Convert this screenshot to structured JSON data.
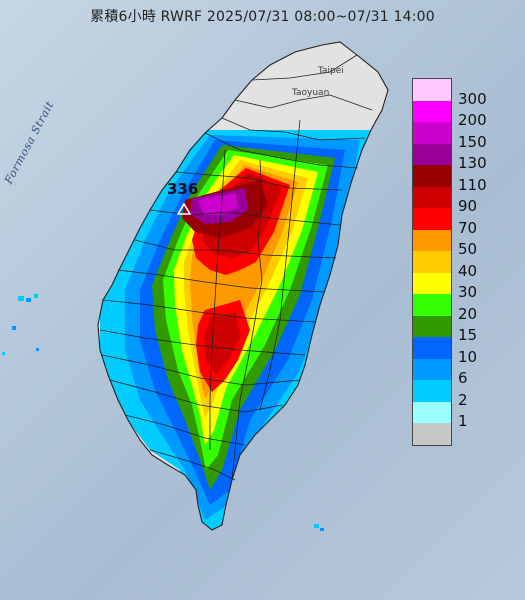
{
  "title": "累積6小時 RWRF 2025/07/31 08:00~07/31 14:00",
  "sea_label": "Formosa Strait",
  "cities": {
    "taipei": "Taipei",
    "taoyuan": "Taoyuan"
  },
  "max_value": "336",
  "legend": {
    "labels": [
      "300",
      "200",
      "150",
      "130",
      "110",
      "90",
      "70",
      "50",
      "40",
      "30",
      "20",
      "15",
      "10",
      "6",
      "2",
      "1"
    ],
    "colors": [
      "#fec9fe",
      "#fd00fd",
      "#cc00cc",
      "#990099",
      "#990000",
      "#cc0000",
      "#ff0000",
      "#ff9900",
      "#ffcc00",
      "#ffff00",
      "#33ff00",
      "#339900",
      "#0066ff",
      "#0099ff",
      "#00ccff",
      "#99ffff",
      "#c8c8c8"
    ]
  },
  "colors": {
    "land_dry": "#e2e2e2",
    "sea": "#b4c7da",
    "boundary": "#222222"
  }
}
